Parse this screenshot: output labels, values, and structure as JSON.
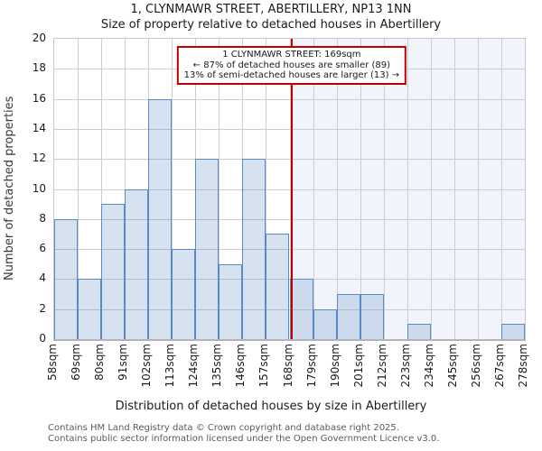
{
  "title": "1, CLYNMAWR STREET, ABERTILLERY, NP13 1NN",
  "subtitle": "Size of property relative to detached houses in Abertillery",
  "chart_data": {
    "type": "bar",
    "histogram": true,
    "bin_edges_sqm": [
      58,
      69,
      80,
      91,
      102,
      113,
      124,
      135,
      146,
      157,
      168,
      179,
      190,
      201,
      212,
      223,
      234,
      245,
      256,
      267,
      278
    ],
    "tick_labels": [
      "58sqm",
      "69sqm",
      "80sqm",
      "91sqm",
      "102sqm",
      "113sqm",
      "124sqm",
      "135sqm",
      "146sqm",
      "157sqm",
      "168sqm",
      "179sqm",
      "190sqm",
      "201sqm",
      "212sqm",
      "223sqm",
      "234sqm",
      "245sqm",
      "256sqm",
      "267sqm",
      "278sqm"
    ],
    "values": [
      8,
      4,
      9,
      10,
      16,
      6,
      12,
      5,
      12,
      7,
      4,
      2,
      3,
      3,
      0,
      1,
      0,
      0,
      0,
      1
    ],
    "xlabel": "Distribution of detached houses by size in Abertillery",
    "ylabel": "Number of detached properties",
    "ylim": [
      0,
      20
    ],
    "ytick_step": 2,
    "grid": true,
    "legend": "none",
    "marker_value_sqm": 169,
    "annotation": {
      "line1": "1 CLYNMAWR STREET: 169sqm",
      "line2": "← 87% of detached houses are smaller (89)",
      "line3": "13% of semi-detached houses are larger (13) →"
    },
    "colors": {
      "bar_fill": "rgba(91,139,197,0.25)",
      "bar_edge": "#5b8bc5",
      "marker_line": "#c00000",
      "annotation_border": "#c00000",
      "grid": "#cdcdd0",
      "shade_right_of_marker": "#f1f4fb"
    }
  },
  "footer": {
    "line1": "Contains HM Land Registry data © Crown copyright and database right 2025.",
    "line2": "Contains public sector information licensed under the Open Government Licence v3.0."
  }
}
